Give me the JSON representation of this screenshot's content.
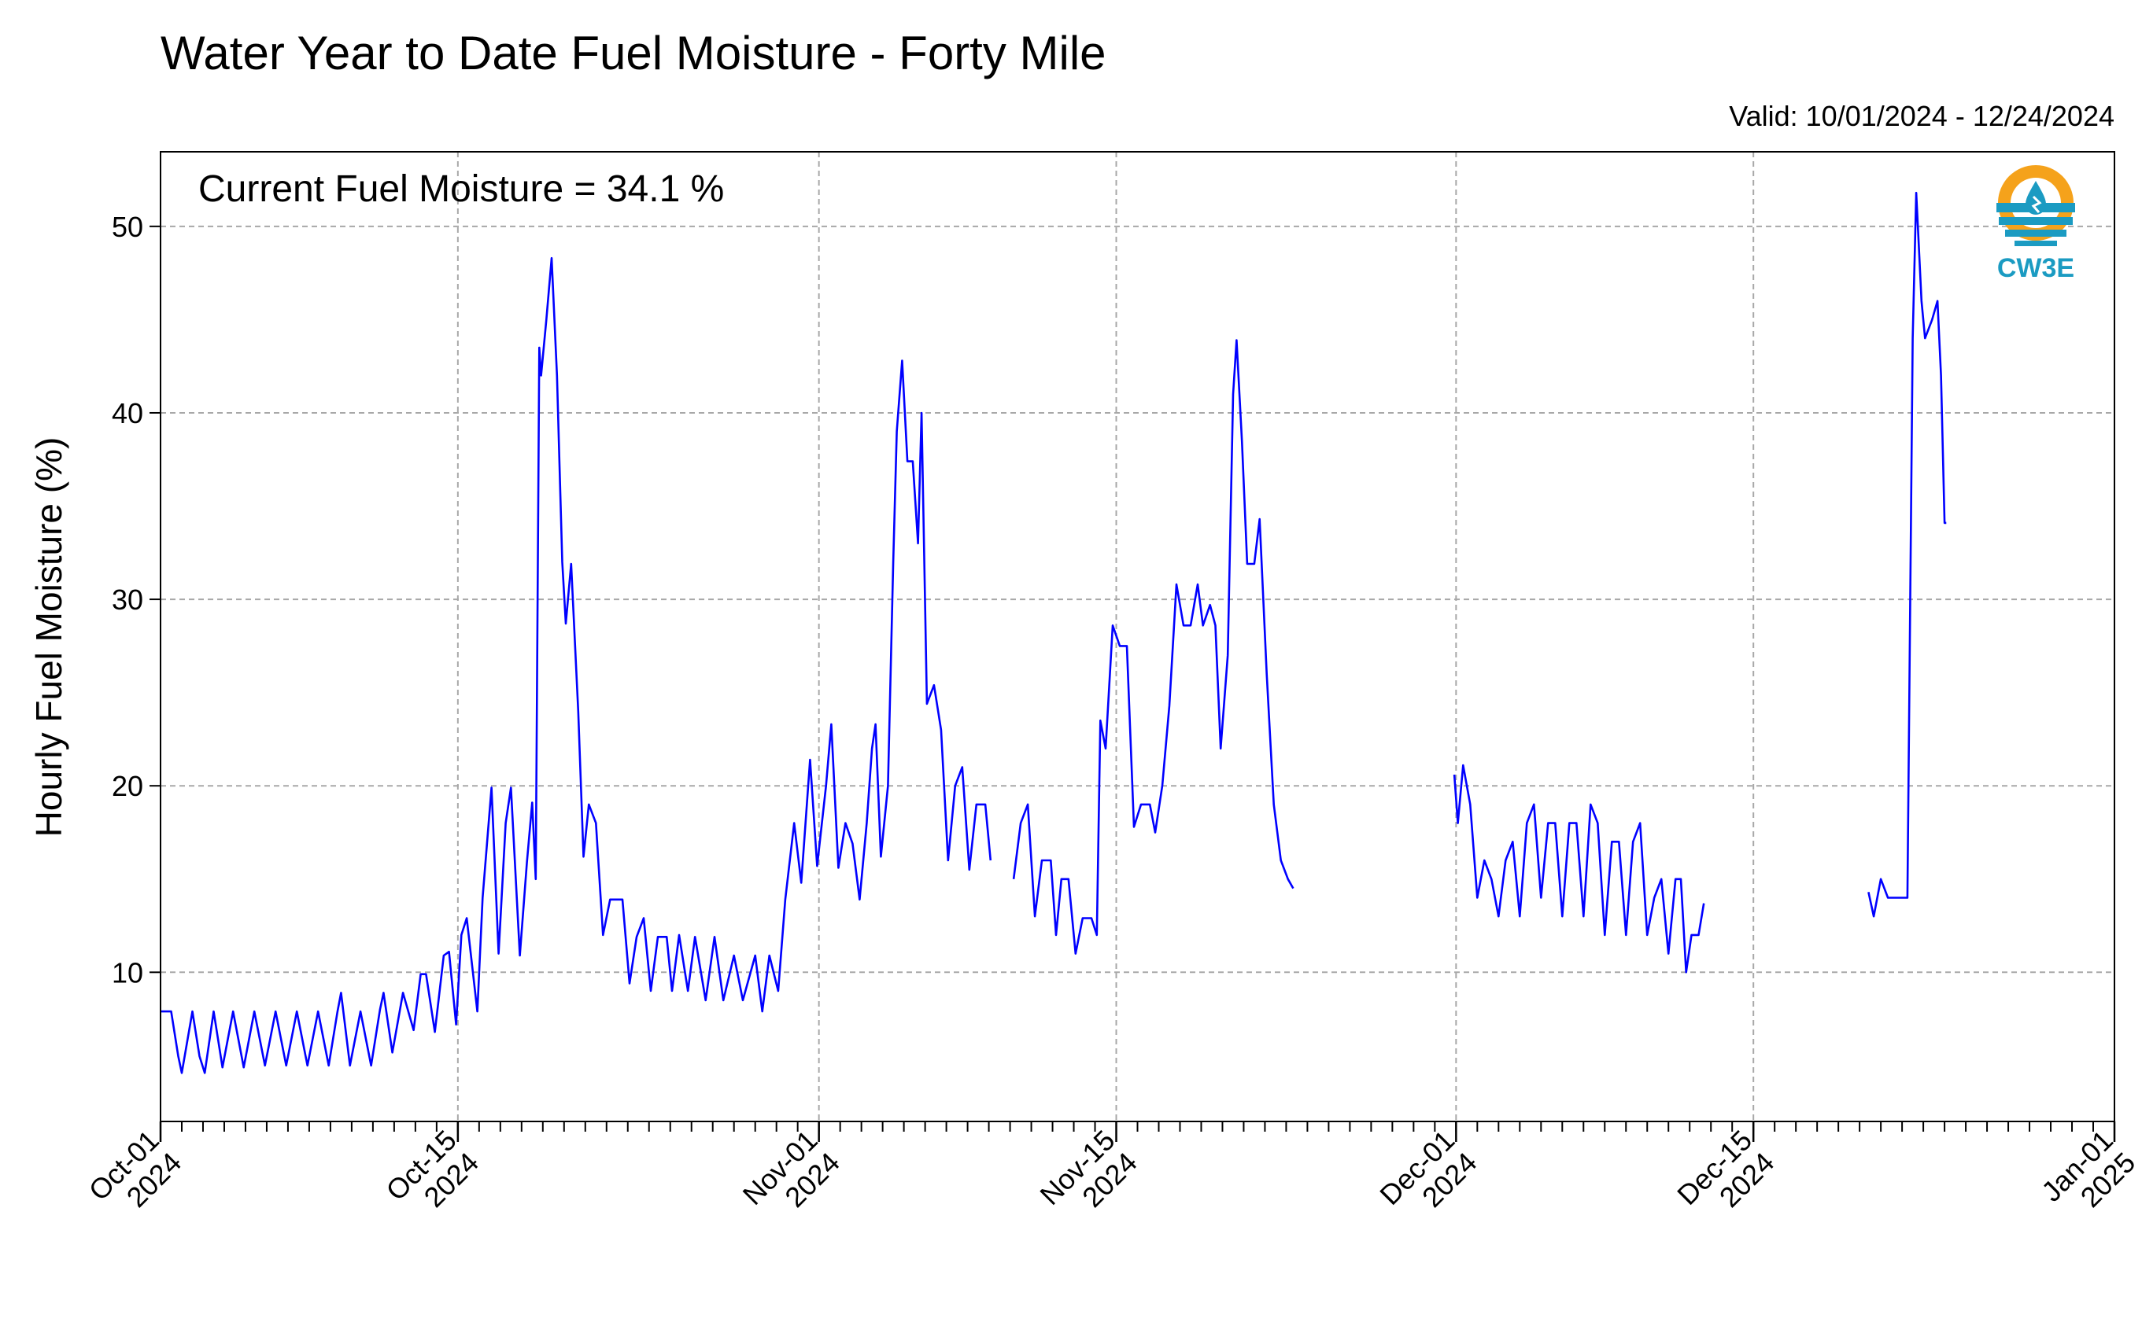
{
  "chart_data": {
    "type": "line",
    "title": "Water Year to Date Fuel Moisture - Forty Mile",
    "subtitle": "Valid: 10/01/2024 - 12/24/2024",
    "xlabel": "",
    "ylabel": "Hourly Fuel Moisture (%)",
    "annotation": "Current Fuel Moisture = 34.1 %",
    "logo_text": "CW3E",
    "xlim": [
      "2024-10-01",
      "2025-01-01"
    ],
    "ylim": [
      2,
      54
    ],
    "yticks": [
      10,
      20,
      30,
      40,
      50
    ],
    "xticks": [
      {
        "date": "2024-10-01",
        "line1": "Oct-01",
        "line2": "2024"
      },
      {
        "date": "2024-10-15",
        "line1": "Oct-15",
        "line2": "2024"
      },
      {
        "date": "2024-11-01",
        "line1": "Nov-01",
        "line2": "2024"
      },
      {
        "date": "2024-11-15",
        "line1": "Nov-15",
        "line2": "2024"
      },
      {
        "date": "2024-12-01",
        "line1": "Dec-01",
        "line2": "2024"
      },
      {
        "date": "2024-12-15",
        "line1": "Dec-15",
        "line2": "2024"
      },
      {
        "date": "2025-01-01",
        "line1": "Jan-01",
        "line2": "2025"
      }
    ],
    "minor_tick_interval_days": 1,
    "grid": true,
    "line_color": "#0000ff",
    "series": [
      {
        "name": "",
        "segments": [
          [
            [
              "2024-10-01 00:00",
              7.9
            ],
            [
              "2024-10-01 12:00",
              7.9
            ],
            [
              "2024-10-01 20:00",
              5.5
            ],
            [
              "2024-10-02 00:00",
              4.6
            ],
            [
              "2024-10-02 12:00",
              7.9
            ],
            [
              "2024-10-02 20:00",
              5.5
            ],
            [
              "2024-10-03 02:00",
              4.6
            ],
            [
              "2024-10-03 12:00",
              7.9
            ],
            [
              "2024-10-03 22:00",
              4.9
            ],
            [
              "2024-10-04 10:00",
              7.9
            ],
            [
              "2024-10-04 22:00",
              4.9
            ],
            [
              "2024-10-05 10:00",
              7.9
            ],
            [
              "2024-10-05 22:00",
              5.0
            ],
            [
              "2024-10-06 10:00",
              7.9
            ],
            [
              "2024-10-06 22:00",
              5.0
            ],
            [
              "2024-10-07 10:00",
              7.9
            ],
            [
              "2024-10-07 22:00",
              5.0
            ],
            [
              "2024-10-08 10:00",
              7.9
            ],
            [
              "2024-10-08 22:00",
              5.0
            ],
            [
              "2024-10-09 08:00",
              7.9
            ],
            [
              "2024-10-09 12:00",
              8.9
            ],
            [
              "2024-10-09 22:00",
              5.0
            ],
            [
              "2024-10-10 10:00",
              7.9
            ],
            [
              "2024-10-10 22:00",
              5.0
            ],
            [
              "2024-10-11 08:00",
              8.0
            ],
            [
              "2024-10-11 12:00",
              8.9
            ],
            [
              "2024-10-11 22:00",
              5.7
            ],
            [
              "2024-10-12 10:00",
              8.9
            ],
            [
              "2024-10-12 22:00",
              6.9
            ],
            [
              "2024-10-13 06:00",
              9.9
            ],
            [
              "2024-10-13 12:00",
              9.9
            ],
            [
              "2024-10-13 22:00",
              6.8
            ],
            [
              "2024-10-14 08:00",
              10.9
            ],
            [
              "2024-10-14 14:00",
              11.1
            ],
            [
              "2024-10-14 22:00",
              7.2
            ],
            [
              "2024-10-15 04:00",
              12.0
            ],
            [
              "2024-10-15 10:00",
              12.9
            ],
            [
              "2024-10-15 22:00",
              7.9
            ],
            [
              "2024-10-16 04:00",
              14.0
            ],
            [
              "2024-10-16 14:00",
              19.9
            ],
            [
              "2024-10-16 22:00",
              11.0
            ],
            [
              "2024-10-17 06:00",
              18.0
            ],
            [
              "2024-10-17 12:00",
              19.9
            ],
            [
              "2024-10-17 22:00",
              10.9
            ],
            [
              "2024-10-18 06:00",
              15.9
            ],
            [
              "2024-10-18 12:00",
              19.1
            ],
            [
              "2024-10-18 16:00",
              15.0
            ],
            [
              "2024-10-18 20:00",
              43.5
            ],
            [
              "2024-10-18 22:00",
              42.0
            ],
            [
              "2024-10-19 04:00",
              45.0
            ],
            [
              "2024-10-19 10:00",
              48.3
            ],
            [
              "2024-10-19 16:00",
              42.0
            ],
            [
              "2024-10-19 22:00",
              32.0
            ],
            [
              "2024-10-20 02:00",
              28.7
            ],
            [
              "2024-10-20 08:00",
              31.9
            ],
            [
              "2024-10-20 16:00",
              24.0
            ],
            [
              "2024-10-20 22:00",
              16.2
            ],
            [
              "2024-10-21 04:00",
              19.0
            ],
            [
              "2024-10-21 12:00",
              18.0
            ],
            [
              "2024-10-21 20:00",
              12.0
            ],
            [
              "2024-10-22 04:00",
              13.9
            ],
            [
              "2024-10-22 18:00",
              13.9
            ],
            [
              "2024-10-23 02:00",
              9.4
            ],
            [
              "2024-10-23 10:00",
              11.9
            ],
            [
              "2024-10-23 18:00",
              12.9
            ],
            [
              "2024-10-24 02:00",
              9.0
            ],
            [
              "2024-10-24 10:00",
              11.9
            ],
            [
              "2024-10-24 20:00",
              11.9
            ],
            [
              "2024-10-25 02:00",
              9.0
            ],
            [
              "2024-10-25 10:00",
              12.0
            ],
            [
              "2024-10-25 20:00",
              9.0
            ],
            [
              "2024-10-26 04:00",
              11.9
            ],
            [
              "2024-10-26 16:00",
              8.5
            ],
            [
              "2024-10-27 02:00",
              11.9
            ],
            [
              "2024-10-27 12:00",
              8.5
            ],
            [
              "2024-10-28 00:00",
              10.9
            ],
            [
              "2024-10-28 10:00",
              8.5
            ],
            [
              "2024-10-29 00:00",
              10.9
            ],
            [
              "2024-10-29 08:00",
              7.9
            ],
            [
              "2024-10-29 16:00",
              10.9
            ],
            [
              "2024-10-30 02:00",
              9.0
            ],
            [
              "2024-10-30 10:00",
              13.9
            ],
            [
              "2024-10-30 20:00",
              18.0
            ],
            [
              "2024-10-31 04:00",
              14.8
            ],
            [
              "2024-10-31 14:00",
              21.4
            ],
            [
              "2024-10-31 22:00",
              15.7
            ],
            [
              "2024-11-01 08:00",
              20.0
            ],
            [
              "2024-11-01 14:00",
              23.3
            ],
            [
              "2024-11-01 22:00",
              15.6
            ],
            [
              "2024-11-02 06:00",
              18.0
            ],
            [
              "2024-11-02 14:00",
              16.9
            ],
            [
              "2024-11-02 22:00",
              13.9
            ],
            [
              "2024-11-03 06:00",
              18.0
            ],
            [
              "2024-11-03 12:00",
              22.0
            ],
            [
              "2024-11-03 16:00",
              23.3
            ],
            [
              "2024-11-03 22:00",
              16.2
            ],
            [
              "2024-11-04 06:00",
              20.0
            ],
            [
              "2024-11-04 12:00",
              32.0
            ],
            [
              "2024-11-04 16:00",
              39.0
            ],
            [
              "2024-11-04 22:00",
              42.8
            ],
            [
              "2024-11-05 04:00",
              37.4
            ],
            [
              "2024-11-05 10:00",
              37.4
            ],
            [
              "2024-11-05 16:00",
              33.0
            ],
            [
              "2024-11-05 20:00",
              40.0
            ],
            [
              "2024-11-06 02:00",
              24.4
            ],
            [
              "2024-11-06 10:00",
              25.4
            ],
            [
              "2024-11-06 18:00",
              23.0
            ],
            [
              "2024-11-07 02:00",
              16.0
            ],
            [
              "2024-11-07 10:00",
              20.0
            ],
            [
              "2024-11-07 18:00",
              21.0
            ],
            [
              "2024-11-08 02:00",
              15.5
            ],
            [
              "2024-11-08 10:00",
              19.0
            ],
            [
              "2024-11-08 20:00",
              19.0
            ],
            [
              "2024-11-09 02:00",
              16.0
            ]
          ],
          [
            [
              "2024-11-10 04:00",
              15.0
            ],
            [
              "2024-11-10 12:00",
              18.0
            ],
            [
              "2024-11-10 20:00",
              19.0
            ],
            [
              "2024-11-11 04:00",
              13.0
            ],
            [
              "2024-11-11 12:00",
              16.0
            ],
            [
              "2024-11-11 22:00",
              16.0
            ],
            [
              "2024-11-12 04:00",
              12.0
            ],
            [
              "2024-11-12 10:00",
              15.0
            ],
            [
              "2024-11-12 18:00",
              15.0
            ],
            [
              "2024-11-13 02:00",
              11.0
            ],
            [
              "2024-11-13 10:00",
              12.9
            ],
            [
              "2024-11-13 20:00",
              12.9
            ],
            [
              "2024-11-14 02:00",
              12.0
            ],
            [
              "2024-11-14 06:00",
              23.5
            ],
            [
              "2024-11-14 12:00",
              22.0
            ],
            [
              "2024-11-14 20:00",
              28.6
            ],
            [
              "2024-11-15 04:00",
              27.5
            ],
            [
              "2024-11-15 12:00",
              27.5
            ],
            [
              "2024-11-15 20:00",
              17.8
            ],
            [
              "2024-11-16 04:00",
              19.0
            ],
            [
              "2024-11-16 14:00",
              19.0
            ],
            [
              "2024-11-16 20:00",
              17.5
            ],
            [
              "2024-11-17 04:00",
              20.0
            ],
            [
              "2024-11-17 12:00",
              24.3
            ],
            [
              "2024-11-17 20:00",
              30.8
            ],
            [
              "2024-11-18 04:00",
              28.6
            ],
            [
              "2024-11-18 12:00",
              28.6
            ],
            [
              "2024-11-18 20:00",
              30.8
            ],
            [
              "2024-11-19 02:00",
              28.6
            ],
            [
              "2024-11-19 10:00",
              29.7
            ],
            [
              "2024-11-19 16:00",
              28.6
            ],
            [
              "2024-11-19 22:00",
              22.0
            ],
            [
              "2024-11-20 06:00",
              27.0
            ],
            [
              "2024-11-20 12:00",
              41.0
            ],
            [
              "2024-11-20 16:00",
              43.9
            ],
            [
              "2024-11-20 22:00",
              38.5
            ],
            [
              "2024-11-21 04:00",
              31.9
            ],
            [
              "2024-11-21 12:00",
              31.9
            ],
            [
              "2024-11-21 18:00",
              34.3
            ],
            [
              "2024-11-22 02:00",
              26.0
            ],
            [
              "2024-11-22 10:00",
              19.0
            ],
            [
              "2024-11-22 18:00",
              16.0
            ],
            [
              "2024-11-23 02:00",
              15.0
            ],
            [
              "2024-11-23 08:00",
              14.5
            ]
          ],
          [
            [
              "2024-11-30 22:00",
              20.6
            ],
            [
              "2024-12-01 02:00",
              18.0
            ],
            [
              "2024-12-01 08:00",
              21.1
            ],
            [
              "2024-12-01 16:00",
              19.0
            ],
            [
              "2024-12-02 00:00",
              14.0
            ],
            [
              "2024-12-02 08:00",
              16.0
            ],
            [
              "2024-12-02 16:00",
              15.0
            ],
            [
              "2024-12-03 00:00",
              13.0
            ],
            [
              "2024-12-03 08:00",
              16.0
            ],
            [
              "2024-12-03 16:00",
              17.0
            ],
            [
              "2024-12-04 00:00",
              13.0
            ],
            [
              "2024-12-04 08:00",
              18.0
            ],
            [
              "2024-12-04 16:00",
              19.0
            ],
            [
              "2024-12-05 00:00",
              14.0
            ],
            [
              "2024-12-05 08:00",
              18.0
            ],
            [
              "2024-12-05 16:00",
              18.0
            ],
            [
              "2024-12-06 00:00",
              13.0
            ],
            [
              "2024-12-06 08:00",
              18.0
            ],
            [
              "2024-12-06 16:00",
              18.0
            ],
            [
              "2024-12-07 00:00",
              13.0
            ],
            [
              "2024-12-07 08:00",
              19.0
            ],
            [
              "2024-12-07 16:00",
              18.0
            ],
            [
              "2024-12-08 00:00",
              12.0
            ],
            [
              "2024-12-08 08:00",
              17.0
            ],
            [
              "2024-12-08 16:00",
              17.0
            ],
            [
              "2024-12-09 00:00",
              12.0
            ],
            [
              "2024-12-09 08:00",
              17.0
            ],
            [
              "2024-12-09 16:00",
              18.0
            ],
            [
              "2024-12-10 00:00",
              12.0
            ],
            [
              "2024-12-10 08:00",
              14.0
            ],
            [
              "2024-12-10 16:00",
              15.0
            ],
            [
              "2024-12-11 00:00",
              11.0
            ],
            [
              "2024-12-11 08:00",
              15.0
            ],
            [
              "2024-12-11 14:00",
              15.0
            ],
            [
              "2024-12-11 20:00",
              10.0
            ],
            [
              "2024-12-12 02:00",
              12.0
            ],
            [
              "2024-12-12 10:00",
              12.0
            ],
            [
              "2024-12-12 16:00",
              13.7
            ]
          ],
          [
            [
              "2024-12-20 10:00",
              14.3
            ],
            [
              "2024-12-20 16:00",
              13.0
            ],
            [
              "2024-12-21 00:00",
              15.0
            ],
            [
              "2024-12-21 08:00",
              14.0
            ],
            [
              "2024-12-21 16:00",
              14.0
            ],
            [
              "2024-12-22 00:00",
              14.0
            ],
            [
              "2024-12-22 06:00",
              14.0
            ],
            [
              "2024-12-22 12:00",
              44.0
            ],
            [
              "2024-12-22 16:00",
              51.8
            ],
            [
              "2024-12-22 22:00",
              46.0
            ],
            [
              "2024-12-23 02:00",
              44.0
            ],
            [
              "2024-12-23 10:00",
              45.0
            ],
            [
              "2024-12-23 16:00",
              46.0
            ],
            [
              "2024-12-23 20:00",
              42.0
            ],
            [
              "2024-12-24 00:00",
              34.1
            ],
            [
              "2024-12-24 02:00",
              34.1
            ]
          ]
        ]
      }
    ]
  }
}
